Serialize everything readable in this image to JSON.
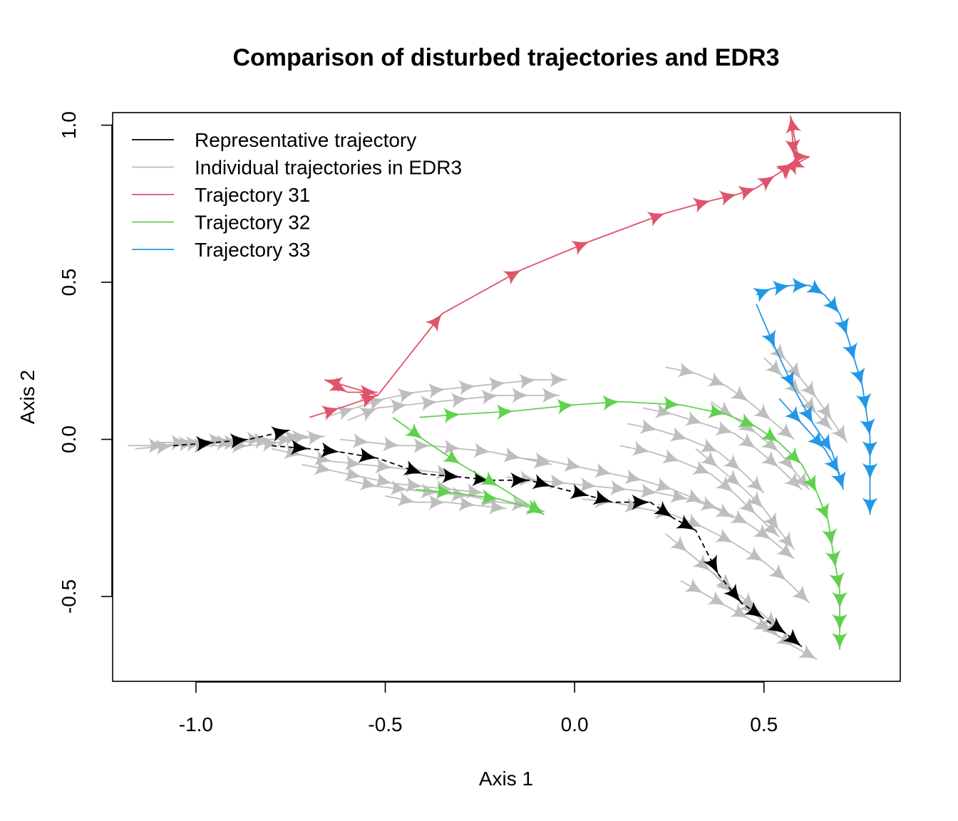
{
  "chart_data": {
    "type": "line",
    "title": "Comparison of disturbed trajectories and EDR3",
    "xlabel": "Axis 1",
    "ylabel": "Axis 2",
    "xlim": [
      -1.22,
      0.86
    ],
    "ylim": [
      -0.77,
      1.04
    ],
    "xticks": [
      -1.0,
      -0.5,
      0.0,
      0.5
    ],
    "xtick_labels": [
      "-1.0",
      "-0.5",
      "0.0",
      "0.5"
    ],
    "yticks": [
      -0.5,
      0.0,
      0.5,
      1.0
    ],
    "ytick_labels": [
      "-0.5",
      "0.0",
      "0.5",
      "1.0"
    ],
    "legend": {
      "position": "top-left",
      "entries": [
        {
          "label": "Representative trajectory",
          "color": "#000000"
        },
        {
          "label": "Individual trajectories in EDR3",
          "color": "#BEBEBE"
        },
        {
          "label": "Trajectory 31",
          "color": "#DF536B"
        },
        {
          "label": "Trajectory 32",
          "color": "#61D04F"
        },
        {
          "label": "Trajectory 33",
          "color": "#2297E6"
        }
      ]
    },
    "series": [
      {
        "color": "#BEBEBE",
        "x": [
          -1.18,
          -1.08,
          -0.98,
          -0.88,
          -0.8,
          -0.72
        ],
        "y": [
          -0.02,
          -0.02,
          -0.01,
          -0.01,
          0.0,
          0.01
        ]
      },
      {
        "color": "#BEBEBE",
        "x": [
          -1.16,
          -1.06,
          -0.96,
          -0.86,
          -0.78
        ],
        "y": [
          -0.03,
          -0.02,
          -0.02,
          -0.02,
          -0.01
        ]
      },
      {
        "color": "#BEBEBE",
        "x": [
          -1.12,
          -1.02,
          -0.92,
          -0.82,
          -0.74,
          -0.66
        ],
        "y": [
          -0.01,
          -0.01,
          0.0,
          0.0,
          0.0,
          0.01
        ]
      },
      {
        "color": "#BEBEBE",
        "x": [
          -1.1,
          -1.0,
          -0.9,
          -0.8,
          -0.7
        ],
        "y": [
          -0.02,
          -0.01,
          -0.01,
          0.0,
          0.01
        ]
      },
      {
        "color": "#BEBEBE",
        "x": [
          -0.66,
          -0.58,
          -0.5,
          -0.42,
          -0.34,
          -0.26,
          -0.18,
          -0.1,
          -0.02
        ],
        "y": [
          0.07,
          0.1,
          0.13,
          0.15,
          0.16,
          0.17,
          0.18,
          0.19,
          0.19
        ]
      },
      {
        "color": "#BEBEBE",
        "x": [
          -0.6,
          -0.52,
          -0.44,
          -0.36,
          -0.28,
          -0.2,
          -0.12,
          -0.04
        ],
        "y": [
          0.06,
          0.1,
          0.11,
          0.12,
          0.13,
          0.14,
          0.14,
          0.14
        ]
      },
      {
        "color": "#BEBEBE",
        "x": [
          -0.62,
          -0.54,
          -0.46,
          -0.38,
          -0.3,
          -0.22,
          -0.14,
          -0.06
        ],
        "y": [
          0.0,
          -0.01,
          -0.02,
          -0.02,
          -0.03,
          -0.04,
          -0.06,
          -0.08
        ]
      },
      {
        "color": "#BEBEBE",
        "x": [
          -0.8,
          -0.72,
          -0.64,
          -0.56,
          -0.48,
          -0.4,
          -0.32
        ],
        "y": [
          -0.03,
          -0.05,
          -0.07,
          -0.08,
          -0.09,
          -0.1,
          -0.11
        ]
      },
      {
        "color": "#BEBEBE",
        "x": [
          -0.72,
          -0.64,
          -0.56,
          -0.48,
          -0.4,
          -0.32,
          -0.24
        ],
        "y": [
          -0.08,
          -0.1,
          -0.12,
          -0.14,
          -0.15,
          -0.16,
          -0.17
        ]
      },
      {
        "color": "#BEBEBE",
        "x": [
          -0.6,
          -0.52,
          -0.44,
          -0.36,
          -0.28,
          -0.2,
          -0.12
        ],
        "y": [
          -0.13,
          -0.15,
          -0.16,
          -0.17,
          -0.18,
          -0.2,
          -0.21
        ]
      },
      {
        "color": "#BEBEBE",
        "x": [
          -0.5,
          -0.42,
          -0.34,
          -0.26,
          -0.18
        ],
        "y": [
          -0.18,
          -0.2,
          -0.2,
          -0.21,
          -0.22
        ]
      },
      {
        "color": "#BEBEBE",
        "x": [
          -0.22,
          -0.14,
          -0.06,
          0.02,
          0.1,
          0.18,
          0.26,
          0.34,
          0.42
        ],
        "y": [
          -0.04,
          -0.06,
          -0.07,
          -0.09,
          -0.11,
          -0.13,
          -0.16,
          -0.2,
          -0.25
        ]
      },
      {
        "color": "#BEBEBE",
        "x": [
          -0.18,
          -0.1,
          -0.02,
          0.06,
          0.14,
          0.22,
          0.3,
          0.38,
          0.46,
          0.52,
          0.58
        ],
        "y": [
          -0.12,
          -0.13,
          -0.14,
          -0.15,
          -0.16,
          -0.17,
          -0.19,
          -0.22,
          -0.27,
          -0.32,
          -0.38
        ]
      },
      {
        "color": "#BEBEBE",
        "x": [
          0.02,
          0.1,
          0.18,
          0.26,
          0.34,
          0.42,
          0.5,
          0.56,
          0.62
        ],
        "y": [
          -0.19,
          -0.2,
          -0.22,
          -0.24,
          -0.28,
          -0.33,
          -0.39,
          -0.45,
          -0.52
        ]
      },
      {
        "color": "#BEBEBE",
        "x": [
          0.28,
          0.34,
          0.4,
          0.46,
          0.52,
          0.58,
          0.64
        ],
        "y": [
          -0.45,
          -0.49,
          -0.53,
          -0.57,
          -0.61,
          -0.66,
          -0.7
        ]
      },
      {
        "color": "#BEBEBE",
        "x": [
          0.3,
          0.36,
          0.42,
          0.48,
          0.54,
          0.6
        ],
        "y": [
          -0.36,
          -0.42,
          -0.48,
          -0.54,
          -0.6,
          -0.66
        ]
      },
      {
        "color": "#BEBEBE",
        "x": [
          0.24,
          0.3,
          0.36,
          0.42,
          0.48,
          0.54
        ],
        "y": [
          -0.3,
          -0.36,
          -0.42,
          -0.49,
          -0.56,
          -0.63
        ]
      },
      {
        "color": "#BEBEBE",
        "x": [
          0.24,
          0.32,
          0.4,
          0.46,
          0.52,
          0.58
        ],
        "y": [
          0.23,
          0.21,
          0.17,
          0.12,
          0.06,
          0.0
        ]
      },
      {
        "color": "#BEBEBE",
        "x": [
          0.18,
          0.26,
          0.34,
          0.42,
          0.48,
          0.54,
          0.6
        ],
        "y": [
          0.1,
          0.08,
          0.05,
          0.02,
          -0.03,
          -0.09,
          -0.16
        ]
      },
      {
        "color": "#BEBEBE",
        "x": [
          0.14,
          0.22,
          0.3,
          0.38,
          0.44,
          0.5
        ],
        "y": [
          0.05,
          0.03,
          0.0,
          -0.04,
          -0.1,
          -0.17
        ]
      },
      {
        "color": "#BEBEBE",
        "x": [
          0.12,
          0.2,
          0.28,
          0.36,
          0.42,
          0.48,
          0.54
        ],
        "y": [
          -0.02,
          -0.04,
          -0.07,
          -0.11,
          -0.17,
          -0.24,
          -0.31
        ]
      },
      {
        "color": "#BEBEBE",
        "x": [
          0.52,
          0.56,
          0.6,
          0.64,
          0.68,
          0.72
        ],
        "y": [
          0.3,
          0.25,
          0.19,
          0.13,
          0.06,
          -0.01
        ]
      },
      {
        "color": "#BEBEBE",
        "x": [
          0.5,
          0.55,
          0.6,
          0.64,
          0.68
        ],
        "y": [
          0.26,
          0.2,
          0.14,
          0.08,
          0.03
        ]
      },
      {
        "color": "#BEBEBE",
        "x": [
          0.36,
          0.42,
          0.48,
          0.54,
          0.58,
          0.62
        ],
        "y": [
          0.12,
          0.07,
          0.02,
          -0.04,
          -0.1,
          -0.16
        ]
      },
      {
        "color": "#BEBEBE",
        "x": [
          0.32,
          0.38,
          0.44,
          0.5,
          0.54,
          0.58
        ],
        "y": [
          -0.03,
          -0.09,
          -0.15,
          -0.22,
          -0.29,
          -0.35
        ]
      },
      {
        "color": "#000000",
        "dashed": true,
        "x": [
          -1.06,
          -0.95,
          -0.86,
          -0.75
        ],
        "y": [
          -0.02,
          -0.01,
          0.0,
          0.03
        ]
      },
      {
        "color": "#000000",
        "dashed": true,
        "x": [
          -0.8,
          -0.7,
          -0.62,
          -0.52,
          -0.4,
          -0.3,
          -0.22,
          -0.12,
          -0.06,
          0.04,
          0.1,
          0.2,
          0.26,
          0.32,
          0.38,
          0.44,
          0.5,
          0.56,
          0.6
        ],
        "y": [
          -0.02,
          -0.03,
          -0.04,
          -0.06,
          -0.11,
          -0.12,
          -0.13,
          -0.13,
          -0.15,
          -0.18,
          -0.2,
          -0.2,
          -0.25,
          -0.29,
          -0.43,
          -0.52,
          -0.57,
          -0.62,
          -0.66
        ]
      },
      {
        "color": "#DF536B",
        "x": [
          -0.7,
          -0.62,
          -0.52,
          -0.35,
          -0.14,
          0.04,
          0.24,
          0.36,
          0.43,
          0.48,
          0.53,
          0.58,
          0.59,
          0.57,
          0.58,
          0.62,
          0.56,
          0.58
        ],
        "y": [
          0.07,
          0.1,
          0.14,
          0.4,
          0.54,
          0.63,
          0.72,
          0.76,
          0.78,
          0.8,
          0.84,
          0.88,
          0.9,
          1.03,
          0.9,
          0.9,
          0.86,
          0.88
        ]
      },
      {
        "color": "#DF536B",
        "x": [
          -0.52,
          -0.66,
          -0.6,
          -0.52
        ],
        "y": [
          0.14,
          0.19,
          0.15,
          0.15
        ]
      },
      {
        "color": "#61D04F",
        "x": [
          -0.41,
          -0.3,
          -0.16,
          0.0,
          0.12,
          0.28,
          0.4,
          0.48,
          0.54,
          0.6,
          0.64,
          0.67,
          0.68,
          0.69,
          0.7,
          0.7,
          0.7,
          0.7
        ],
        "y": [
          0.07,
          0.08,
          0.09,
          0.11,
          0.12,
          0.11,
          0.08,
          0.04,
          -0.01,
          -0.08,
          -0.17,
          -0.26,
          -0.34,
          -0.41,
          -0.48,
          -0.54,
          -0.61,
          -0.67
        ]
      },
      {
        "color": "#61D04F",
        "x": [
          -0.48,
          -0.4,
          -0.3,
          -0.2,
          -0.08
        ],
        "y": [
          0.07,
          0.0,
          -0.08,
          -0.15,
          -0.24
        ]
      },
      {
        "color": "#61D04F",
        "x": [
          -0.42,
          -0.32,
          -0.2,
          -0.08
        ],
        "y": [
          -0.16,
          -0.17,
          -0.19,
          -0.23
        ]
      },
      {
        "color": "#2297E6",
        "x": [
          0.48,
          0.52,
          0.57,
          0.62,
          0.66,
          0.7,
          0.72,
          0.74,
          0.76,
          0.77,
          0.78,
          0.78,
          0.78,
          0.78
        ],
        "y": [
          0.46,
          0.48,
          0.49,
          0.49,
          0.46,
          0.4,
          0.33,
          0.25,
          0.17,
          0.09,
          0.01,
          -0.06,
          -0.13,
          -0.24
        ]
      },
      {
        "color": "#2297E6",
        "x": [
          0.48,
          0.53,
          0.58,
          0.63,
          0.68,
          0.71
        ],
        "y": [
          0.43,
          0.29,
          0.16,
          0.05,
          -0.04,
          -0.16
        ]
      },
      {
        "color": "#2297E6",
        "x": [
          0.54,
          0.6,
          0.66,
          0.7
        ],
        "y": [
          0.13,
          0.05,
          -0.03,
          -0.11
        ]
      }
    ]
  }
}
